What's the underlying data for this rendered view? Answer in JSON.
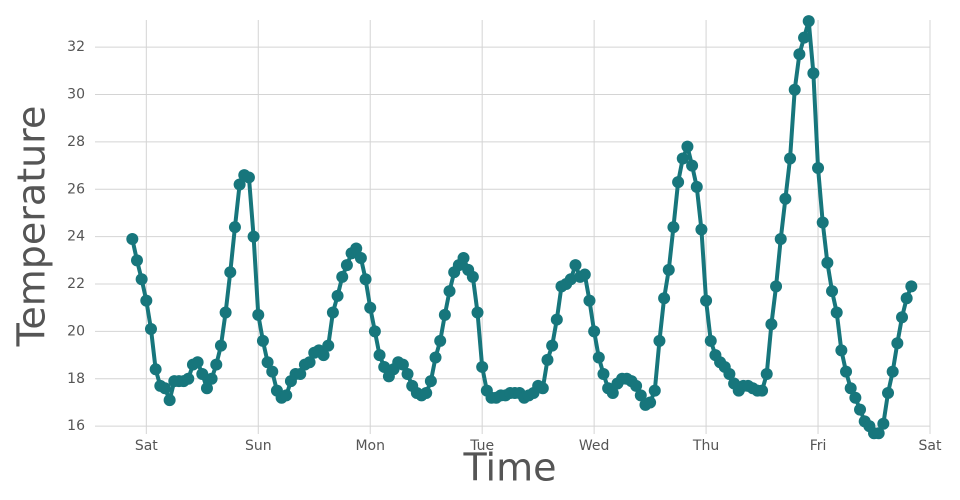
{
  "chart_data": {
    "type": "line",
    "xlabel": "Time",
    "ylabel": "Temperature",
    "x": [
      -3,
      -2,
      -1,
      0,
      1,
      2,
      3,
      4,
      5,
      6,
      7,
      8,
      9,
      10,
      11,
      12,
      13,
      14,
      15,
      16,
      17,
      18,
      19,
      20,
      21,
      22,
      23,
      24,
      25,
      26,
      27,
      28,
      29,
      30,
      31,
      32,
      33,
      34,
      35,
      36,
      37,
      38,
      39,
      40,
      41,
      42,
      43,
      44,
      45,
      46,
      47,
      48,
      49,
      50,
      51,
      52,
      53,
      54,
      55,
      56,
      57,
      58,
      59,
      60,
      61,
      62,
      63,
      64,
      65,
      66,
      67,
      68,
      69,
      70,
      71,
      72,
      73,
      74,
      75,
      76,
      77,
      78,
      79,
      80,
      81,
      82,
      83,
      84,
      85,
      86,
      87,
      88,
      89,
      90,
      91,
      92,
      93,
      94,
      95,
      96,
      97,
      98,
      99,
      100,
      101,
      102,
      103,
      104,
      105,
      106,
      107,
      108,
      109,
      110,
      111,
      112,
      113,
      114,
      115,
      116,
      117,
      118,
      119,
      120,
      121,
      122,
      123,
      124,
      125,
      126,
      127,
      128,
      129,
      130,
      131,
      132,
      133,
      134,
      135,
      136,
      137,
      138,
      139,
      140,
      141,
      142,
      143,
      144,
      145,
      146,
      147,
      148,
      149,
      150,
      151,
      152,
      153,
      154,
      155,
      156,
      157,
      158,
      159,
      160,
      161,
      162,
      163,
      164
    ],
    "series": [
      {
        "name": "Temperature",
        "color": "#17767c",
        "values": [
          23.9,
          23.0,
          22.2,
          21.3,
          20.1,
          18.4,
          17.7,
          17.6,
          17.1,
          17.9,
          17.9,
          17.9,
          18.0,
          18.6,
          18.7,
          18.2,
          17.6,
          18.0,
          18.6,
          19.4,
          20.8,
          22.5,
          24.4,
          26.2,
          26.6,
          26.5,
          24.0,
          20.7,
          19.6,
          18.7,
          18.3,
          17.5,
          17.2,
          17.3,
          17.9,
          18.2,
          18.2,
          18.6,
          18.7,
          19.1,
          19.2,
          19.0,
          19.4,
          20.8,
          21.5,
          22.3,
          22.8,
          23.3,
          23.5,
          23.1,
          22.2,
          21.0,
          20.0,
          19.0,
          18.5,
          18.1,
          18.4,
          18.7,
          18.6,
          18.2,
          17.7,
          17.4,
          17.3,
          17.4,
          17.9,
          18.9,
          19.6,
          20.7,
          21.7,
          22.5,
          22.8,
          23.1,
          22.6,
          22.3,
          20.8,
          18.5,
          17.5,
          17.2,
          17.2,
          17.3,
          17.3,
          17.4,
          17.4,
          17.4,
          17.2,
          17.3,
          17.4,
          17.7,
          17.6,
          18.8,
          19.4,
          20.5,
          21.9,
          22.0,
          22.2,
          22.8,
          22.3,
          22.4,
          21.3,
          20.0,
          18.9,
          18.2,
          17.6,
          17.4,
          17.8,
          18.0,
          18.0,
          17.9,
          17.7,
          17.3,
          16.9,
          17.0,
          17.5,
          19.6,
          21.4,
          22.6,
          24.4,
          26.3,
          27.3,
          27.8,
          27.0,
          26.1,
          24.3,
          21.3,
          19.6,
          19.0,
          18.7,
          18.5,
          18.2,
          17.8,
          17.5,
          17.7,
          17.7,
          17.6,
          17.5,
          17.5,
          18.2,
          20.3,
          21.9,
          23.9,
          25.6,
          27.3,
          30.2,
          31.7,
          32.4,
          33.1,
          30.9,
          26.9,
          24.6,
          22.9,
          21.7,
          20.8,
          19.2,
          18.3,
          17.6,
          17.2,
          16.7,
          16.2,
          16.0,
          15.7,
          15.7,
          16.1,
          17.4,
          18.3,
          19.5,
          20.6,
          21.4,
          21.9
        ]
      }
    ],
    "xlim": [
      -11,
      168
    ],
    "xticks": [
      {
        "value": 0,
        "label": "Sat"
      },
      {
        "value": 24,
        "label": "Sun"
      },
      {
        "value": 48,
        "label": "Mon"
      },
      {
        "value": 72,
        "label": "Tue"
      },
      {
        "value": 96,
        "label": "Wed"
      },
      {
        "value": 120,
        "label": "Thu"
      },
      {
        "value": 144,
        "label": "Fri"
      },
      {
        "value": 168,
        "label": "Sat"
      }
    ],
    "ylim": [
      15.5,
      33.4
    ],
    "yticks": [
      16,
      18,
      20,
      22,
      24,
      26,
      28,
      30,
      32
    ],
    "grid": true
  }
}
